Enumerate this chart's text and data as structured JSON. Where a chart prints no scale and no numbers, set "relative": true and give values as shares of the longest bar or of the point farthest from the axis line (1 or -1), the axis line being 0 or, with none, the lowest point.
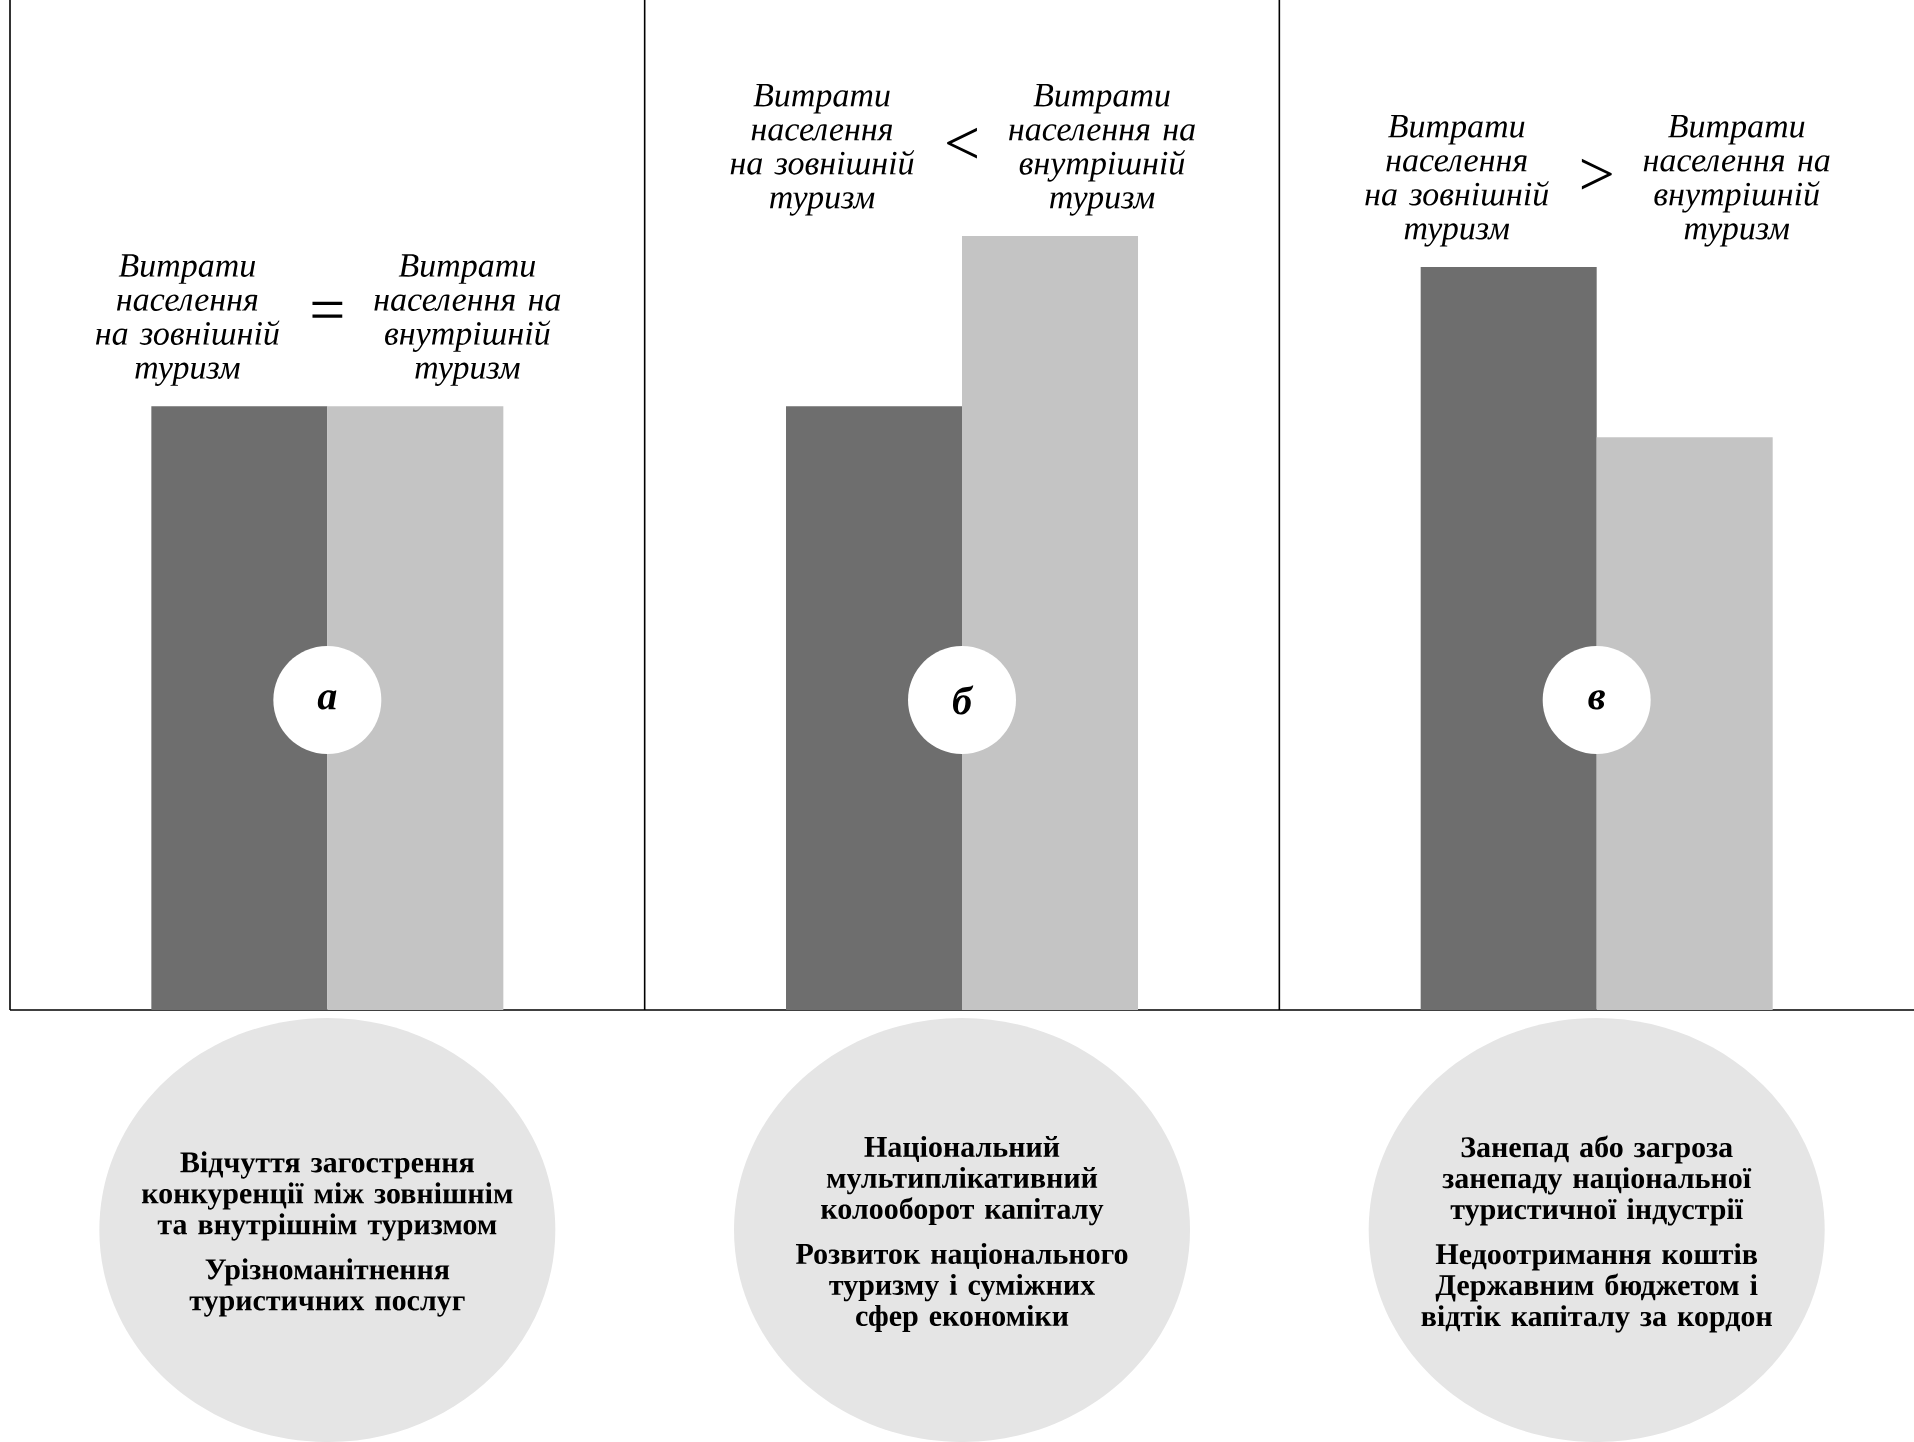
{
  "chart_data": {
    "type": "bar",
    "relative": true,
    "categories": [
      "а",
      "б",
      "в"
    ],
    "series": [
      {
        "name": "Витрати населення на зовнішній туризм",
        "color": "#6e6e6e",
        "values": [
          0.78,
          0.78,
          0.96
        ]
      },
      {
        "name": "Витрати населення на внутрішній туризм",
        "color": "#c4c4c4",
        "values": [
          0.78,
          1,
          0.74
        ]
      }
    ],
    "annotations": [
      "=",
      "<",
      ">",
      "Відчуття загострення конкуренції між зовнішнім та внутрішнім туризмом",
      "Урізноманітнення туристичних послуг",
      "Національний мультиплікативний колооборот капіталу",
      "Розвиток національного туризму і суміжних сфер економіки",
      "Занепад або загроза занепаду національної туристичної індустрії",
      "Недоотримання коштів Державним бюджетом і відтік капіталу за кордон"
    ]
  }
}
